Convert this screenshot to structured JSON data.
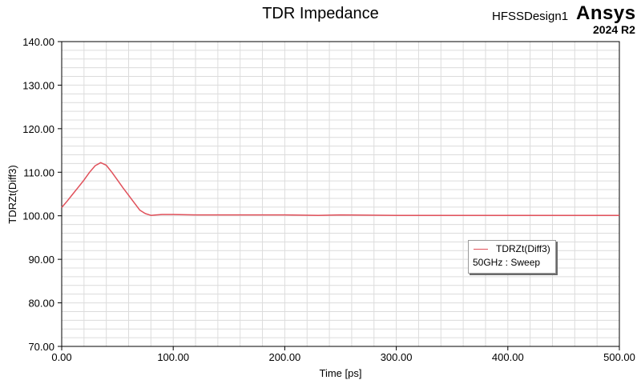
{
  "header": {
    "title": "TDR Impedance",
    "design_name": "HFSSDesign1",
    "brand": "Ansys",
    "version": "2024 R2"
  },
  "legend": {
    "series_label": "TDRZt(Diff3)",
    "sweep_label": "50GHz : Sweep"
  },
  "colors": {
    "series": "#e0505a",
    "grid": "#dcdcdc",
    "axis": "#000000"
  },
  "chart_data": {
    "type": "line",
    "title": "TDR Impedance",
    "xlabel": "Time [ps]",
    "ylabel": "TDRZt(Diff3)",
    "xlim": [
      0,
      500
    ],
    "ylim": [
      70,
      140
    ],
    "x_ticks": [
      "0.00",
      "100.00",
      "200.00",
      "300.00",
      "400.00",
      "500.00"
    ],
    "y_ticks": [
      "70.00",
      "80.00",
      "90.00",
      "100.00",
      "110.00",
      "120.00",
      "130.00",
      "140.00"
    ],
    "grid": true,
    "legend_position": "right",
    "series": [
      {
        "name": "TDRZt(Diff3)",
        "x": [
          0,
          5,
          10,
          15,
          20,
          25,
          30,
          35,
          40,
          45,
          50,
          55,
          60,
          65,
          70,
          75,
          80,
          85,
          90,
          100,
          120,
          150,
          200,
          230,
          250,
          300,
          350,
          400,
          450,
          500
        ],
        "y": [
          101.9,
          103.4,
          105.0,
          106.6,
          108.2,
          110.0,
          111.5,
          112.2,
          111.6,
          110.0,
          108.2,
          106.4,
          104.7,
          103.0,
          101.3,
          100.5,
          100.1,
          100.2,
          100.3,
          100.3,
          100.2,
          100.2,
          100.2,
          100.1,
          100.2,
          100.1,
          100.1,
          100.1,
          100.1,
          100.1
        ]
      }
    ]
  }
}
